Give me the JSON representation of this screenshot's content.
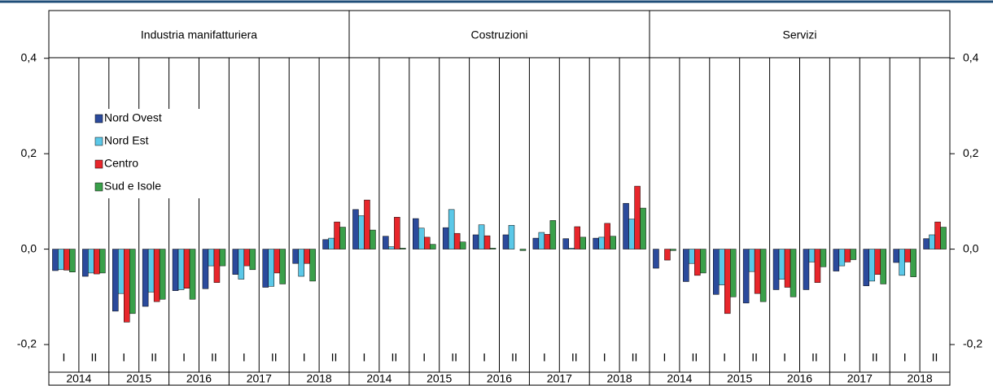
{
  "chart_data": {
    "type": "bar",
    "panels": [
      "Industria manifatturiera",
      "Costruzioni",
      "Servizi"
    ],
    "categories": [
      "I",
      "II",
      "I",
      "II",
      "I",
      "II",
      "I",
      "II",
      "I",
      "II"
    ],
    "groups": [
      "2014",
      "2015",
      "2016",
      "2017",
      "2018"
    ],
    "ylim": [
      -0.2,
      0.5
    ],
    "yticks": [
      {
        "value": -0.2,
        "label": "-0,2"
      },
      {
        "value": 0,
        "label": "0,0"
      },
      {
        "value": 0.2,
        "label": "0,2"
      },
      {
        "value": 0.4,
        "label": "0,4"
      }
    ],
    "series": [
      {
        "name": "Nord Ovest",
        "color": "#2b4a9c",
        "values": [
          [
            -0.045,
            -0.057,
            -0.13,
            -0.12,
            -0.087,
            -0.083,
            -0.053,
            -0.08,
            -0.03,
            0.02
          ],
          [
            0.083,
            0.027,
            0.064,
            0.045,
            0.03,
            0.03,
            0.023,
            0.022,
            0.023,
            0.096
          ],
          [
            -0.04,
            -0.068,
            -0.095,
            -0.113,
            -0.085,
            -0.085,
            -0.046,
            -0.077,
            -0.028,
            0.022
          ]
        ]
      },
      {
        "name": "Nord Est",
        "color": "#5bc8e8",
        "values": [
          [
            -0.043,
            -0.05,
            -0.093,
            -0.09,
            -0.085,
            -0.035,
            -0.063,
            -0.078,
            -0.057,
            0.023
          ],
          [
            0.07,
            0.005,
            0.044,
            0.083,
            0.051,
            0.05,
            0.035,
            0.002,
            0.025,
            0.063
          ],
          [
            0.0,
            -0.03,
            -0.075,
            -0.047,
            -0.063,
            -0.027,
            -0.035,
            -0.067,
            -0.055,
            0.03
          ]
        ]
      },
      {
        "name": "Centro",
        "color": "#e8262b",
        "values": [
          [
            -0.044,
            -0.052,
            -0.153,
            -0.11,
            -0.082,
            -0.07,
            -0.035,
            -0.05,
            -0.03,
            0.057
          ],
          [
            0.103,
            0.067,
            0.025,
            0.033,
            0.028,
            0.0,
            0.031,
            0.047,
            0.054,
            0.132
          ],
          [
            -0.023,
            -0.055,
            -0.135,
            -0.093,
            -0.08,
            -0.07,
            -0.027,
            -0.053,
            -0.027,
            0.057
          ]
        ]
      },
      {
        "name": "Sud e Isole",
        "color": "#3aa04a",
        "values": [
          [
            -0.048,
            -0.05,
            -0.135,
            -0.105,
            -0.105,
            -0.035,
            -0.043,
            -0.073,
            -0.067,
            0.046
          ],
          [
            0.04,
            0.002,
            0.01,
            0.015,
            0.002,
            -0.003,
            0.06,
            0.025,
            0.027,
            0.086
          ],
          [
            -0.003,
            -0.05,
            -0.1,
            -0.11,
            -0.1,
            -0.037,
            -0.022,
            -0.073,
            -0.058,
            0.046
          ]
        ]
      }
    ]
  }
}
